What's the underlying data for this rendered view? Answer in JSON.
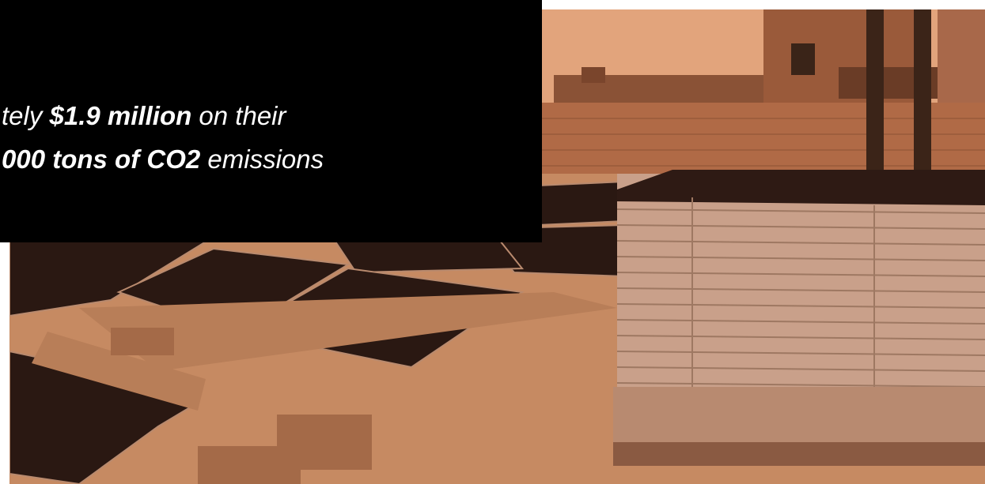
{
  "headline": {
    "line1": [
      "tely ",
      "$1.9 million",
      " on their"
    ],
    "line2": [
      "000 tons of CO2",
      " emissions"
    ]
  }
}
